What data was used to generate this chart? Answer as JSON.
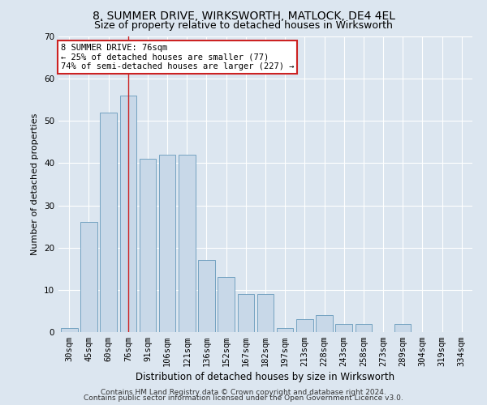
{
  "title1": "8, SUMMER DRIVE, WIRKSWORTH, MATLOCK, DE4 4EL",
  "title2": "Size of property relative to detached houses in Wirksworth",
  "xlabel": "Distribution of detached houses by size in Wirksworth",
  "ylabel": "Number of detached properties",
  "categories": [
    "30sqm",
    "45sqm",
    "60sqm",
    "76sqm",
    "91sqm",
    "106sqm",
    "121sqm",
    "136sqm",
    "152sqm",
    "167sqm",
    "182sqm",
    "197sqm",
    "213sqm",
    "228sqm",
    "243sqm",
    "258sqm",
    "273sqm",
    "289sqm",
    "304sqm",
    "319sqm",
    "334sqm"
  ],
  "values": [
    1,
    26,
    52,
    56,
    41,
    42,
    42,
    17,
    13,
    9,
    9,
    1,
    3,
    4,
    2,
    2,
    0,
    2,
    0,
    0,
    0
  ],
  "bar_color": "#c8d8e8",
  "bar_edge_color": "#6699bb",
  "ref_line_index": 3,
  "annotation_line1": "8 SUMMER DRIVE: 76sqm",
  "annotation_line2": "← 25% of detached houses are smaller (77)",
  "annotation_line3": "74% of semi-detached houses are larger (227) →",
  "annotation_box_facecolor": "#ffffff",
  "annotation_box_edgecolor": "#cc2222",
  "ref_line_color": "#cc2222",
  "ylim": [
    0,
    70
  ],
  "yticks": [
    0,
    10,
    20,
    30,
    40,
    50,
    60,
    70
  ],
  "background_color": "#dce6f0",
  "plot_background": "#dce6f0",
  "footer1": "Contains HM Land Registry data © Crown copyright and database right 2024.",
  "footer2": "Contains public sector information licensed under the Open Government Licence v3.0.",
  "title1_fontsize": 10,
  "title2_fontsize": 9,
  "xlabel_fontsize": 8.5,
  "ylabel_fontsize": 8,
  "tick_fontsize": 7.5,
  "annotation_fontsize": 7.5,
  "footer_fontsize": 6.5
}
